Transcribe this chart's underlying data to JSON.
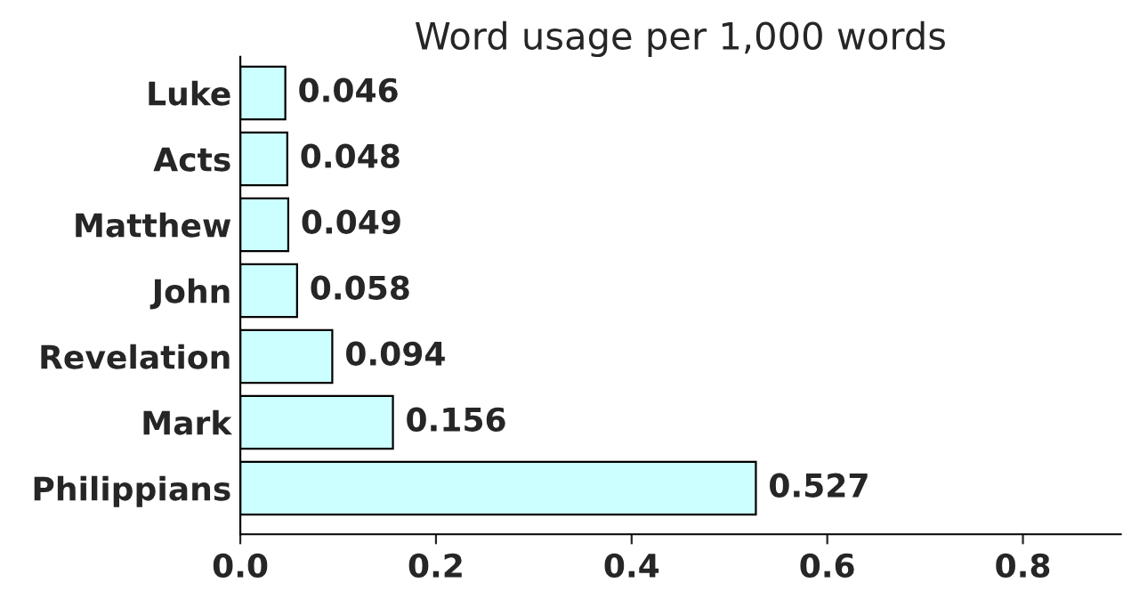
{
  "chart_data": {
    "type": "bar",
    "orientation": "horizontal",
    "title": "Word usage per 1,000 words",
    "categories": [
      "Luke",
      "Acts",
      "Matthew",
      "John",
      "Revelation",
      "Mark",
      "Philippians"
    ],
    "values": [
      0.046,
      0.048,
      0.049,
      0.058,
      0.094,
      0.156,
      0.527
    ],
    "color": "#ccffff",
    "xlim": [
      0,
      0.9
    ],
    "xticks": [
      {
        "value": 0,
        "label": "0.0"
      },
      {
        "value": 0.2,
        "label": "0.2"
      },
      {
        "value": 0.4,
        "label": "0.4"
      },
      {
        "value": 0.6,
        "label": "0.6"
      },
      {
        "value": 0.8,
        "label": "0.8"
      }
    ],
    "data_labels": true,
    "grid": false,
    "legend": false
  }
}
